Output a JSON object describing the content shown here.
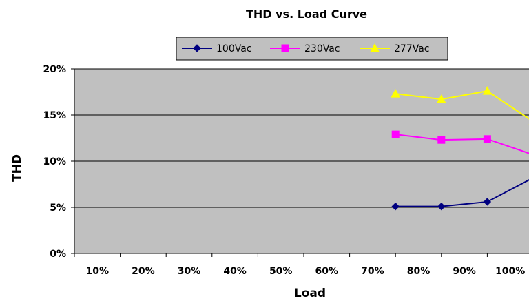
{
  "chart_data": {
    "type": "line",
    "title": "THD vs. Load Curve",
    "xlabel": "Load",
    "ylabel": "THD",
    "categories": [
      "10%",
      "20%",
      "30%",
      "40%",
      "50%",
      "60%",
      "70%",
      "80%",
      "90%",
      "100%"
    ],
    "y_ticks": [
      "0%",
      "5%",
      "10%",
      "15%",
      "20%"
    ],
    "ylim": [
      0,
      20
    ],
    "grid": "horizontal",
    "legend_position": "top",
    "series": [
      {
        "name": "100Vac",
        "color": "#000080",
        "marker": "diamond",
        "values": [
          null,
          null,
          null,
          null,
          null,
          null,
          5.1,
          5.1,
          5.6,
          8.2
        ]
      },
      {
        "name": "230Vac",
        "color": "#ff00ff",
        "marker": "square",
        "values": [
          null,
          null,
          null,
          null,
          null,
          null,
          12.9,
          12.3,
          12.4,
          10.7
        ]
      },
      {
        "name": "277Vac",
        "color": "#ffff00",
        "marker": "triangle",
        "values": [
          null,
          null,
          null,
          null,
          null,
          null,
          17.3,
          16.7,
          17.6,
          14.3
        ]
      }
    ]
  }
}
